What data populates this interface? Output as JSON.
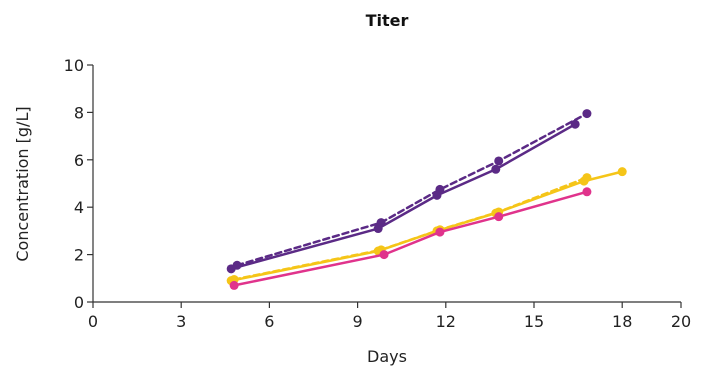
{
  "chart_data": {
    "type": "line",
    "title": "Titer",
    "xlabel": "Days",
    "ylabel": "Concentration [g/L]",
    "xlim": [
      0,
      20
    ],
    "ylim": [
      0,
      10
    ],
    "xticks": [
      0,
      3,
      6,
      9,
      12,
      15,
      18,
      20
    ],
    "yticks": [
      0,
      2,
      4,
      6,
      8,
      10
    ],
    "grid": false,
    "series": [
      {
        "color": "#5b2a86",
        "dashed": true,
        "x": [
          4.9,
          9.8,
          11.8,
          13.8,
          16.8
        ],
        "y": [
          1.55,
          3.35,
          4.75,
          5.95,
          7.95
        ]
      },
      {
        "color": "#5b2a86",
        "dashed": false,
        "x": [
          4.7,
          9.7,
          11.7,
          13.7,
          16.4
        ],
        "y": [
          1.4,
          3.1,
          4.5,
          5.6,
          7.5
        ]
      },
      {
        "color": "#f5c518",
        "dashed": true,
        "x": [
          4.8,
          9.8,
          11.8,
          13.8,
          16.8
        ],
        "y": [
          0.95,
          2.2,
          3.05,
          3.8,
          5.25
        ]
      },
      {
        "color": "#f5c518",
        "dashed": false,
        "x": [
          4.7,
          9.7,
          11.7,
          13.7,
          16.7,
          18.0
        ],
        "y": [
          0.9,
          2.15,
          3.0,
          3.75,
          5.1,
          5.5
        ]
      },
      {
        "color": "#e0338c",
        "dashed": false,
        "x": [
          4.8,
          9.9,
          11.8,
          13.8,
          16.8
        ],
        "y": [
          0.7,
          2.0,
          2.95,
          3.6,
          4.65
        ]
      }
    ]
  }
}
